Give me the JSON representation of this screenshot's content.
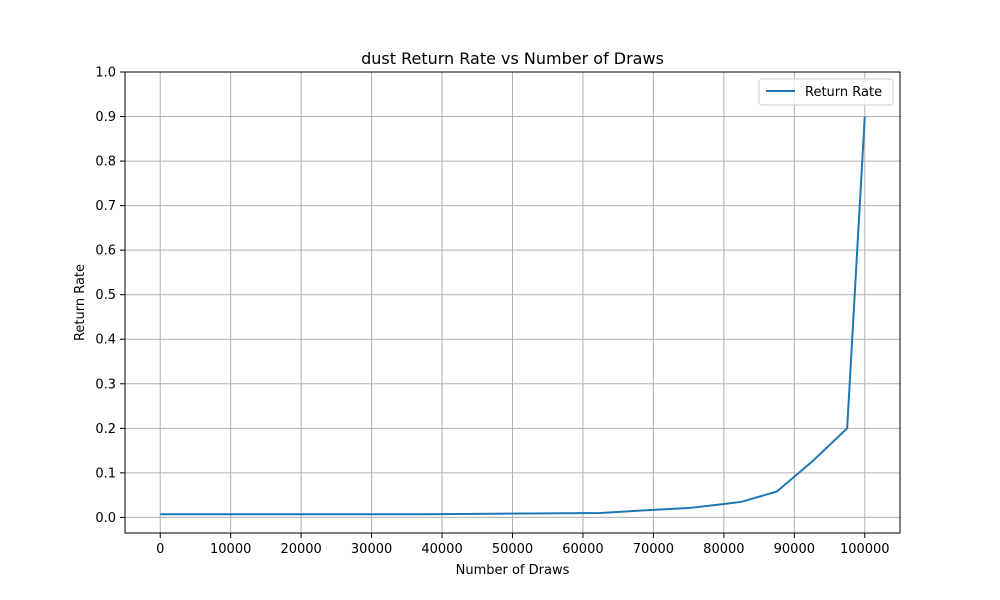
{
  "chart_data": {
    "type": "line",
    "title": "dust Return Rate vs Number of Draws",
    "xlabel": "Number of Draws",
    "ylabel": "Return Rate",
    "xlim": [
      -5000,
      105000
    ],
    "ylim": [
      -0.035,
      1.0
    ],
    "xticks": [
      0,
      10000,
      20000,
      30000,
      40000,
      50000,
      60000,
      70000,
      80000,
      90000,
      100000
    ],
    "xtick_labels": [
      "0",
      "10000",
      "20000",
      "30000",
      "40000",
      "50000",
      "60000",
      "70000",
      "80000",
      "90000",
      "100000"
    ],
    "yticks": [
      0.0,
      0.1,
      0.2,
      0.3,
      0.4,
      0.5,
      0.6,
      0.7,
      0.8,
      0.9,
      1.0
    ],
    "ytick_labels": [
      "0.0",
      "0.1",
      "0.2",
      "0.3",
      "0.4",
      "0.5",
      "0.6",
      "0.7",
      "0.8",
      "0.9",
      "1.0"
    ],
    "grid": true,
    "legend_position": "top-right",
    "series": [
      {
        "name": "Return Rate",
        "color": "#1f77b4",
        "x": [
          0,
          37500,
          62500,
          70000,
          75000,
          80000,
          82500,
          87500,
          92500,
          97500,
          100000
        ],
        "y": [
          0.007,
          0.007,
          0.01,
          0.017,
          0.021,
          0.03,
          0.035,
          0.058,
          0.125,
          0.2,
          0.9
        ]
      }
    ]
  }
}
